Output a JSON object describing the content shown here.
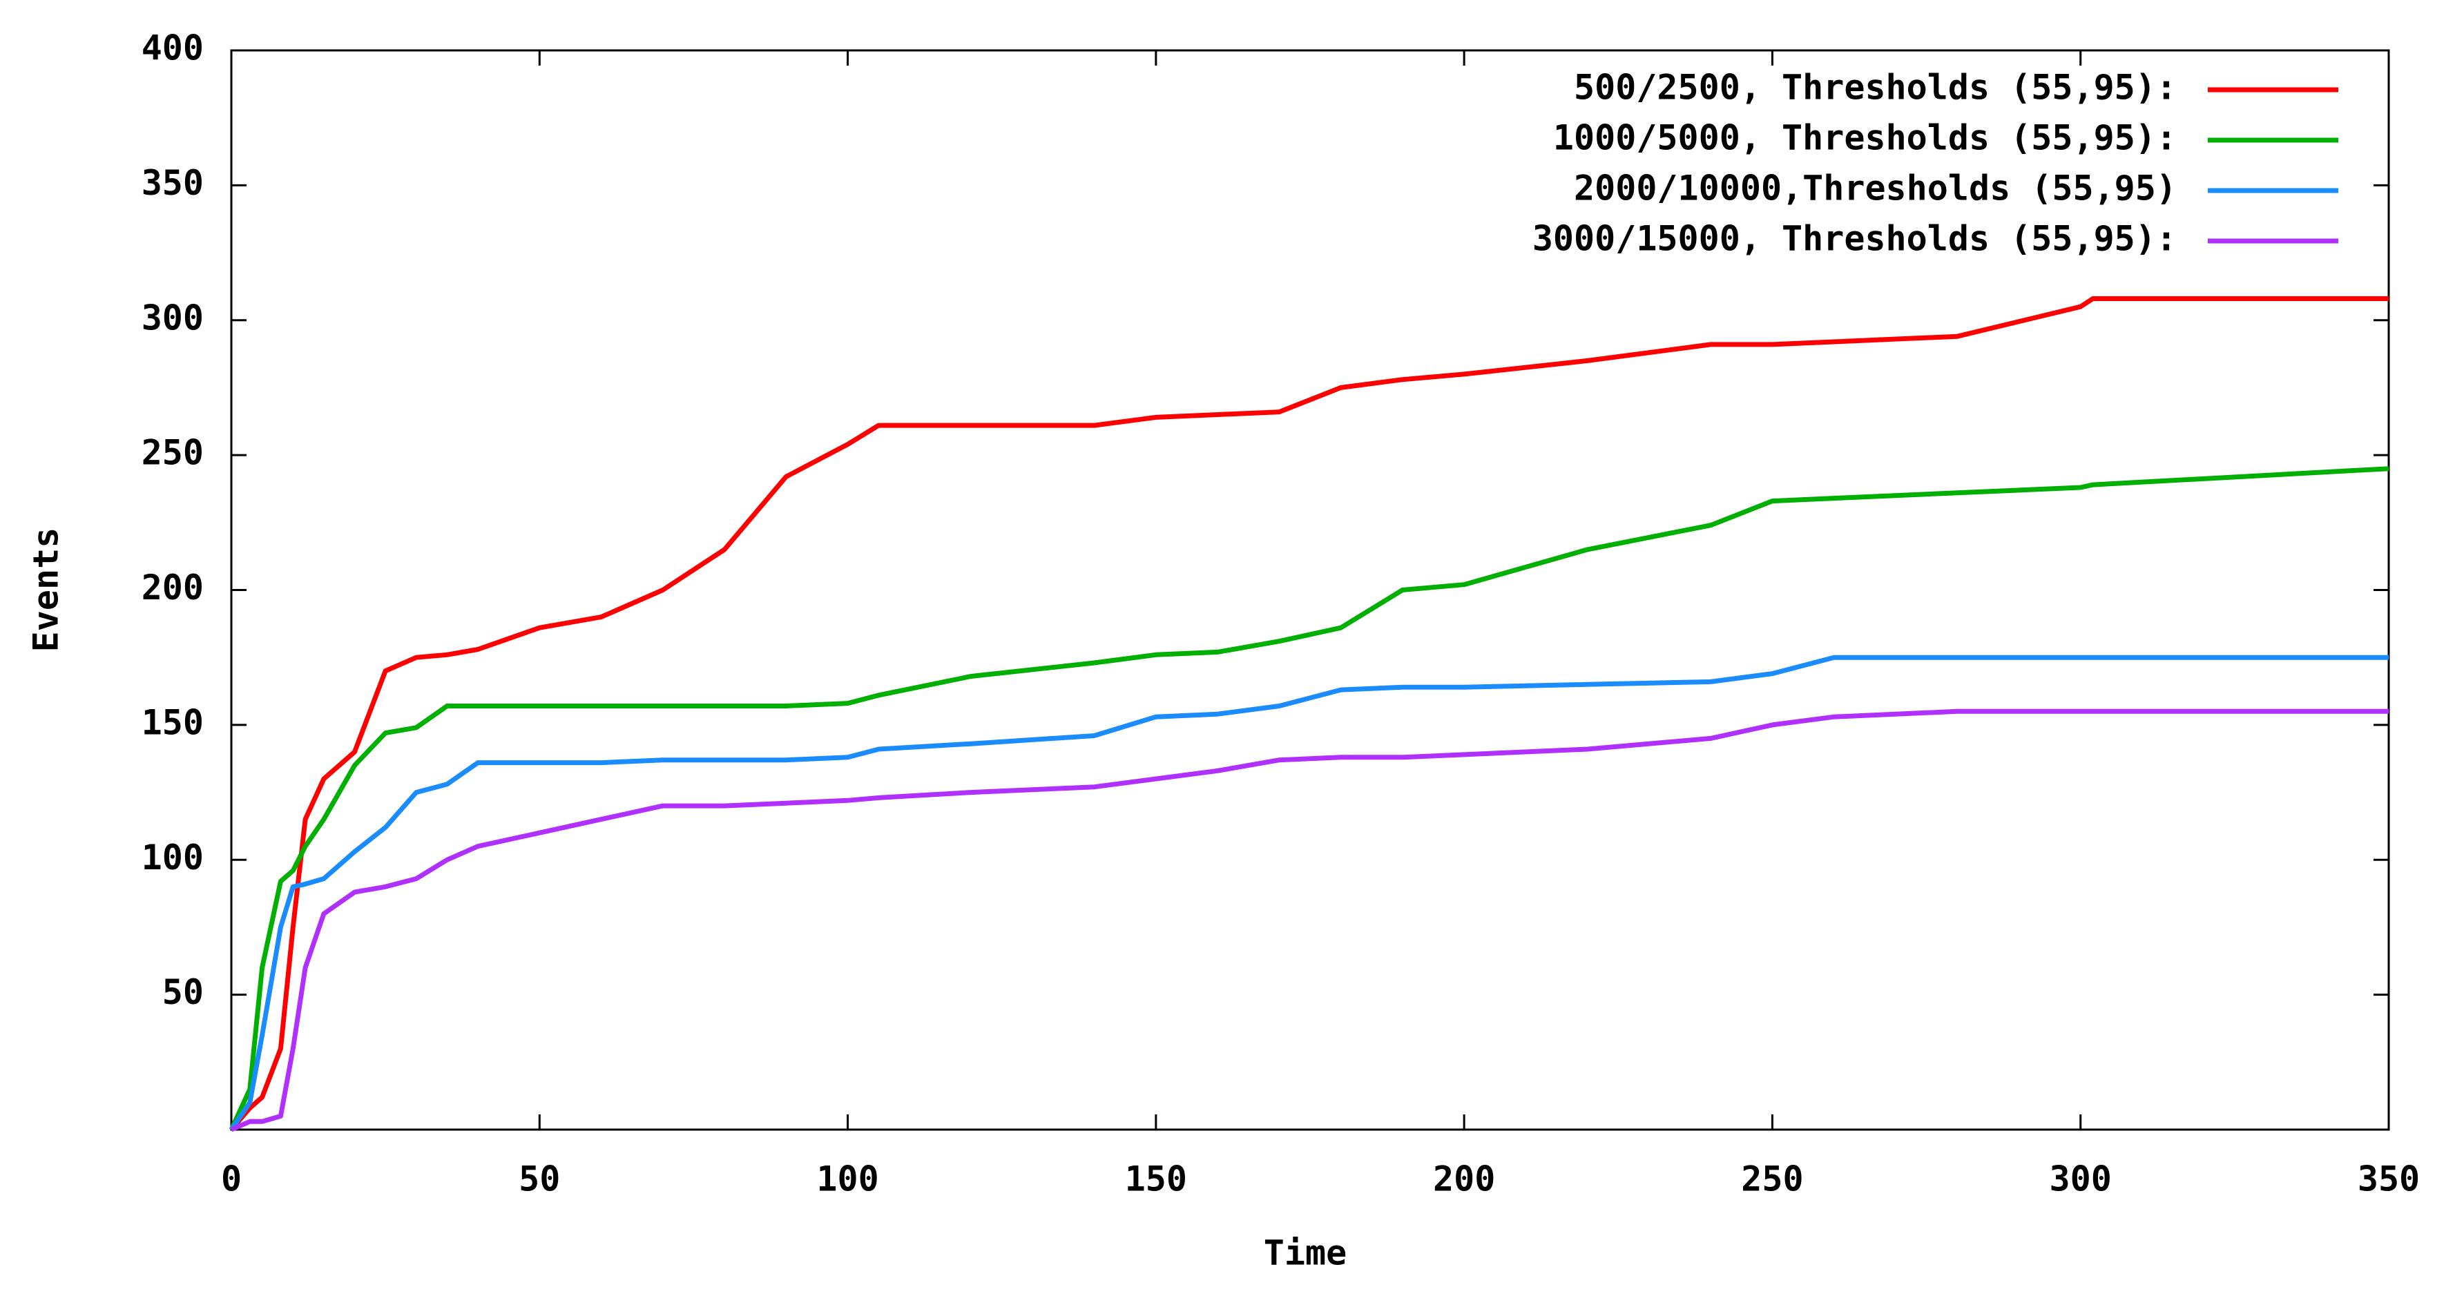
{
  "chart_data": {
    "type": "line",
    "x_label": "Time",
    "y_label": "Events",
    "x": [
      0,
      3,
      5,
      8,
      10,
      12,
      15,
      20,
      25,
      30,
      35,
      40,
      50,
      60,
      70,
      80,
      90,
      100,
      105,
      120,
      140,
      150,
      160,
      170,
      180,
      190,
      200,
      220,
      240,
      250,
      260,
      280,
      300,
      302,
      350
    ],
    "series": [
      {
        "name": "500/2500, Thresholds (55,95):",
        "color": "#ff0000",
        "values": [
          0,
          8,
          12,
          30,
          75,
          115,
          130,
          140,
          170,
          175,
          176,
          178,
          186,
          190,
          200,
          215,
          242,
          254,
          261,
          261,
          261,
          264,
          265,
          266,
          275,
          278,
          280,
          285,
          291,
          291,
          292,
          294,
          305,
          308,
          308
        ]
      },
      {
        "name": "1000/5000, Thresholds (55,95):",
        "color": "#00b000",
        "values": [
          0,
          15,
          60,
          92,
          96,
          105,
          115,
          135,
          147,
          149,
          157,
          157,
          157,
          157,
          157,
          157,
          157,
          158,
          161,
          168,
          173,
          176,
          177,
          181,
          186,
          200,
          202,
          215,
          224,
          233,
          234,
          236,
          238,
          239,
          245
        ]
      },
      {
        "name": "2000/10000,Thresholds (55,95)",
        "color": "#1a8cff",
        "values": [
          0,
          10,
          35,
          75,
          90,
          91,
          93,
          103,
          112,
          125,
          128,
          136,
          136,
          136,
          137,
          137,
          137,
          138,
          141,
          143,
          146,
          153,
          154,
          157,
          163,
          164,
          164,
          165,
          166,
          169,
          175,
          175,
          175,
          175,
          175
        ]
      },
      {
        "name": "3000/15000, Thresholds (55,95):",
        "color": "#b030ff",
        "values": [
          0,
          3,
          3,
          5,
          30,
          60,
          80,
          88,
          90,
          93,
          100,
          105,
          110,
          115,
          120,
          120,
          121,
          122,
          123,
          125,
          127,
          130,
          133,
          137,
          138,
          138,
          139,
          141,
          145,
          150,
          153,
          155,
          155,
          155,
          155
        ]
      }
    ],
    "xlim": [
      0,
      350
    ],
    "ylim": [
      0,
      400
    ],
    "xticks": [
      0,
      50,
      100,
      150,
      200,
      250,
      300,
      350
    ],
    "yticks": [
      50,
      100,
      150,
      200,
      250,
      300,
      350,
      400
    ],
    "legend": "top-right"
  }
}
